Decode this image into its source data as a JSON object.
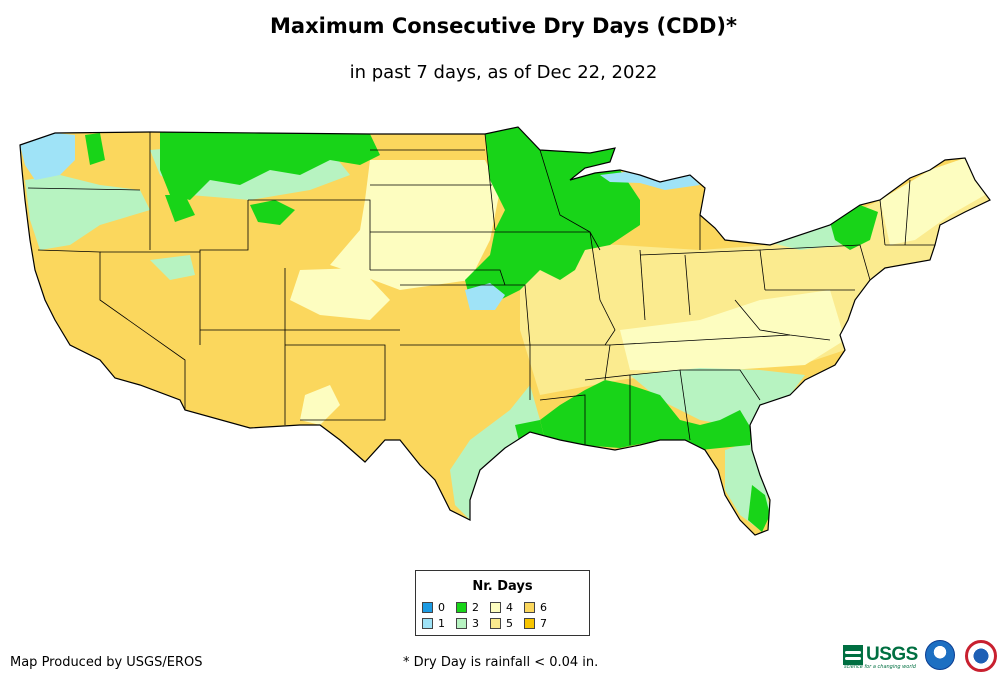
{
  "title": "Maximum Consecutive Dry Days (CDD)*",
  "subtitle": "in past 7 days, as of Dec 22, 2022",
  "legend": {
    "title": "Nr. Days",
    "items": [
      {
        "label": "0",
        "color": "#1c9be3"
      },
      {
        "label": "2",
        "color": "#18d418"
      },
      {
        "label": "4",
        "color": "#fdfdc0"
      },
      {
        "label": "6",
        "color": "#fbd75d"
      },
      {
        "label": "1",
        "color": "#9fe3f7"
      },
      {
        "label": "3",
        "color": "#b7f3c1"
      },
      {
        "label": "5",
        "color": "#fbeb8f"
      },
      {
        "label": "7",
        "color": "#f7c400"
      }
    ]
  },
  "credit": "Map Produced by USGS/EROS",
  "footnote": "* Dry Day is rainfall < 0.04 in.",
  "logos": {
    "usgs_text": "USGS",
    "usgs_tagline": "science for a changing world",
    "noaa": "noaa",
    "nws": "National Weather Service"
  }
}
